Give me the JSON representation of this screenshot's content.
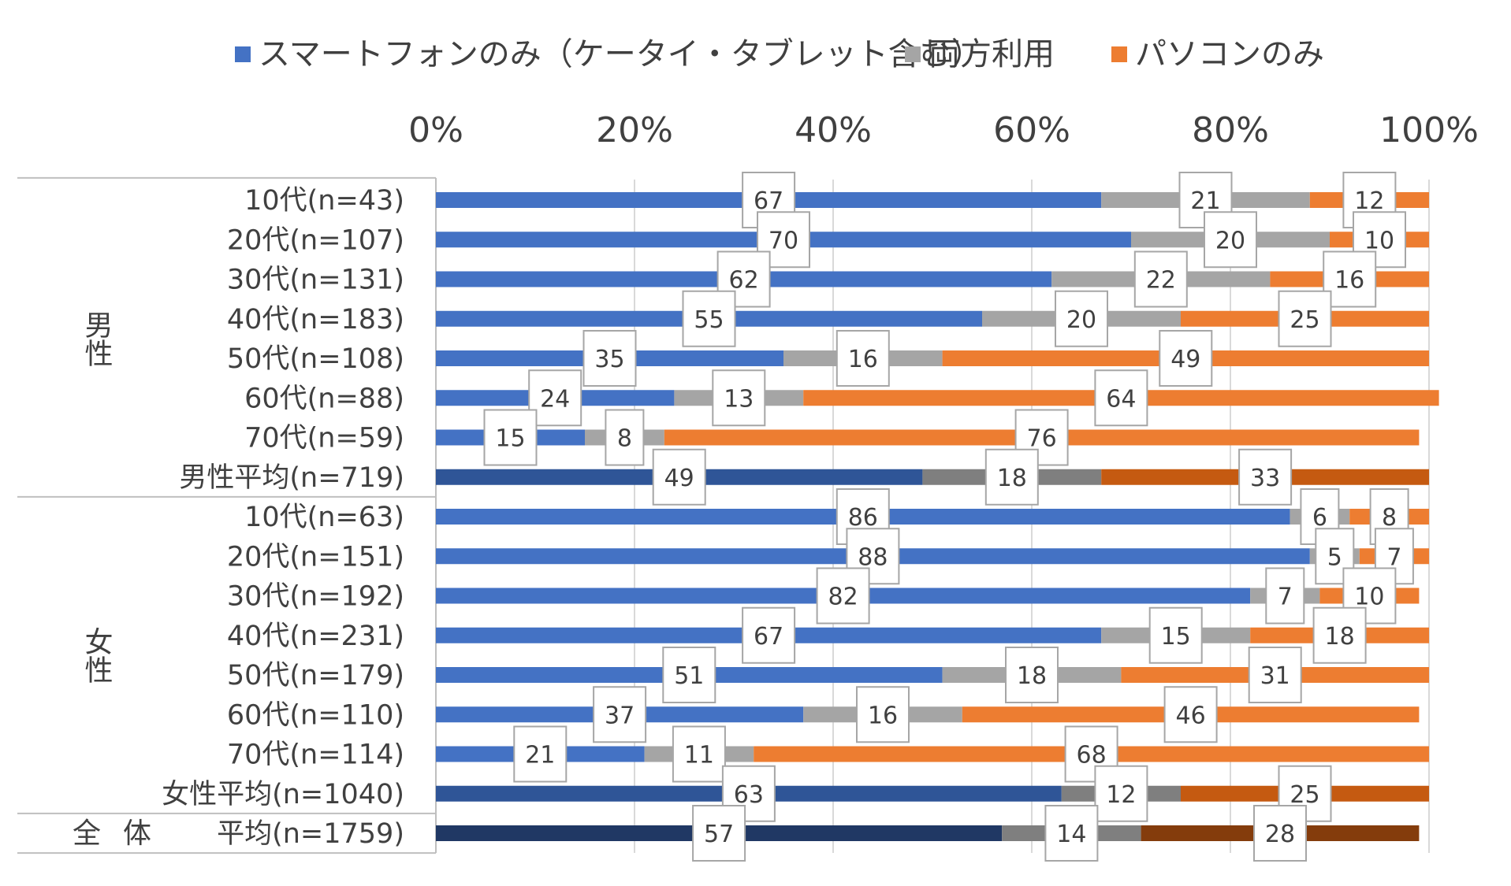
{
  "chart_data": {
    "type": "bar",
    "orientation": "horizontal",
    "stacked": true,
    "legend_position": "top",
    "xlim": [
      0,
      100
    ],
    "x_ticks": [
      "0%",
      "20%",
      "40%",
      "60%",
      "80%",
      "100%"
    ],
    "groups": [
      {
        "label": "男性",
        "rows": 8
      },
      {
        "label": "女性",
        "rows": 8
      },
      {
        "label": "全体",
        "rows": 1
      }
    ],
    "categories": [
      "10代(n=43)",
      "20代(n=107)",
      "30代(n=131)",
      "40代(n=183)",
      "50代(n=108)",
      "60代(n=88)",
      "70代(n=59)",
      "男性平均(n=719)",
      "10代(n=63)",
      "20代(n=151)",
      "30代(n=192)",
      "40代(n=231)",
      "50代(n=179)",
      "60代(n=110)",
      "70代(n=114)",
      "女性平均(n=1040)",
      "平均(n=1759)"
    ],
    "series": [
      {
        "name": "スマートフォンのみ（ケータイ・タブレット含む）",
        "color": "#4472C4",
        "values": [
          67,
          70,
          62,
          55,
          35,
          24,
          15,
          49,
          86,
          88,
          82,
          67,
          51,
          37,
          21,
          63,
          57
        ]
      },
      {
        "name": "両方利用",
        "color": "#A5A5A5",
        "values": [
          21,
          20,
          22,
          20,
          16,
          13,
          8,
          18,
          6,
          5,
          7,
          15,
          18,
          16,
          11,
          12,
          14
        ]
      },
      {
        "name": "パソコンのみ",
        "color": "#ED7D31",
        "values": [
          12,
          10,
          16,
          25,
          49,
          64,
          76,
          33,
          8,
          7,
          10,
          18,
          31,
          46,
          68,
          25,
          28
        ]
      }
    ],
    "row_color_overrides": {
      "男性平均(n=719)": [
        "#2F5597",
        "#7F7F7F",
        "#C55A11"
      ],
      "女性平均(n=1040)": [
        "#2F5597",
        "#7F7F7F",
        "#C55A11"
      ],
      "平均(n=1759)": [
        "#203864",
        "#7F7F7F",
        "#843C0C"
      ]
    },
    "grid": true
  }
}
